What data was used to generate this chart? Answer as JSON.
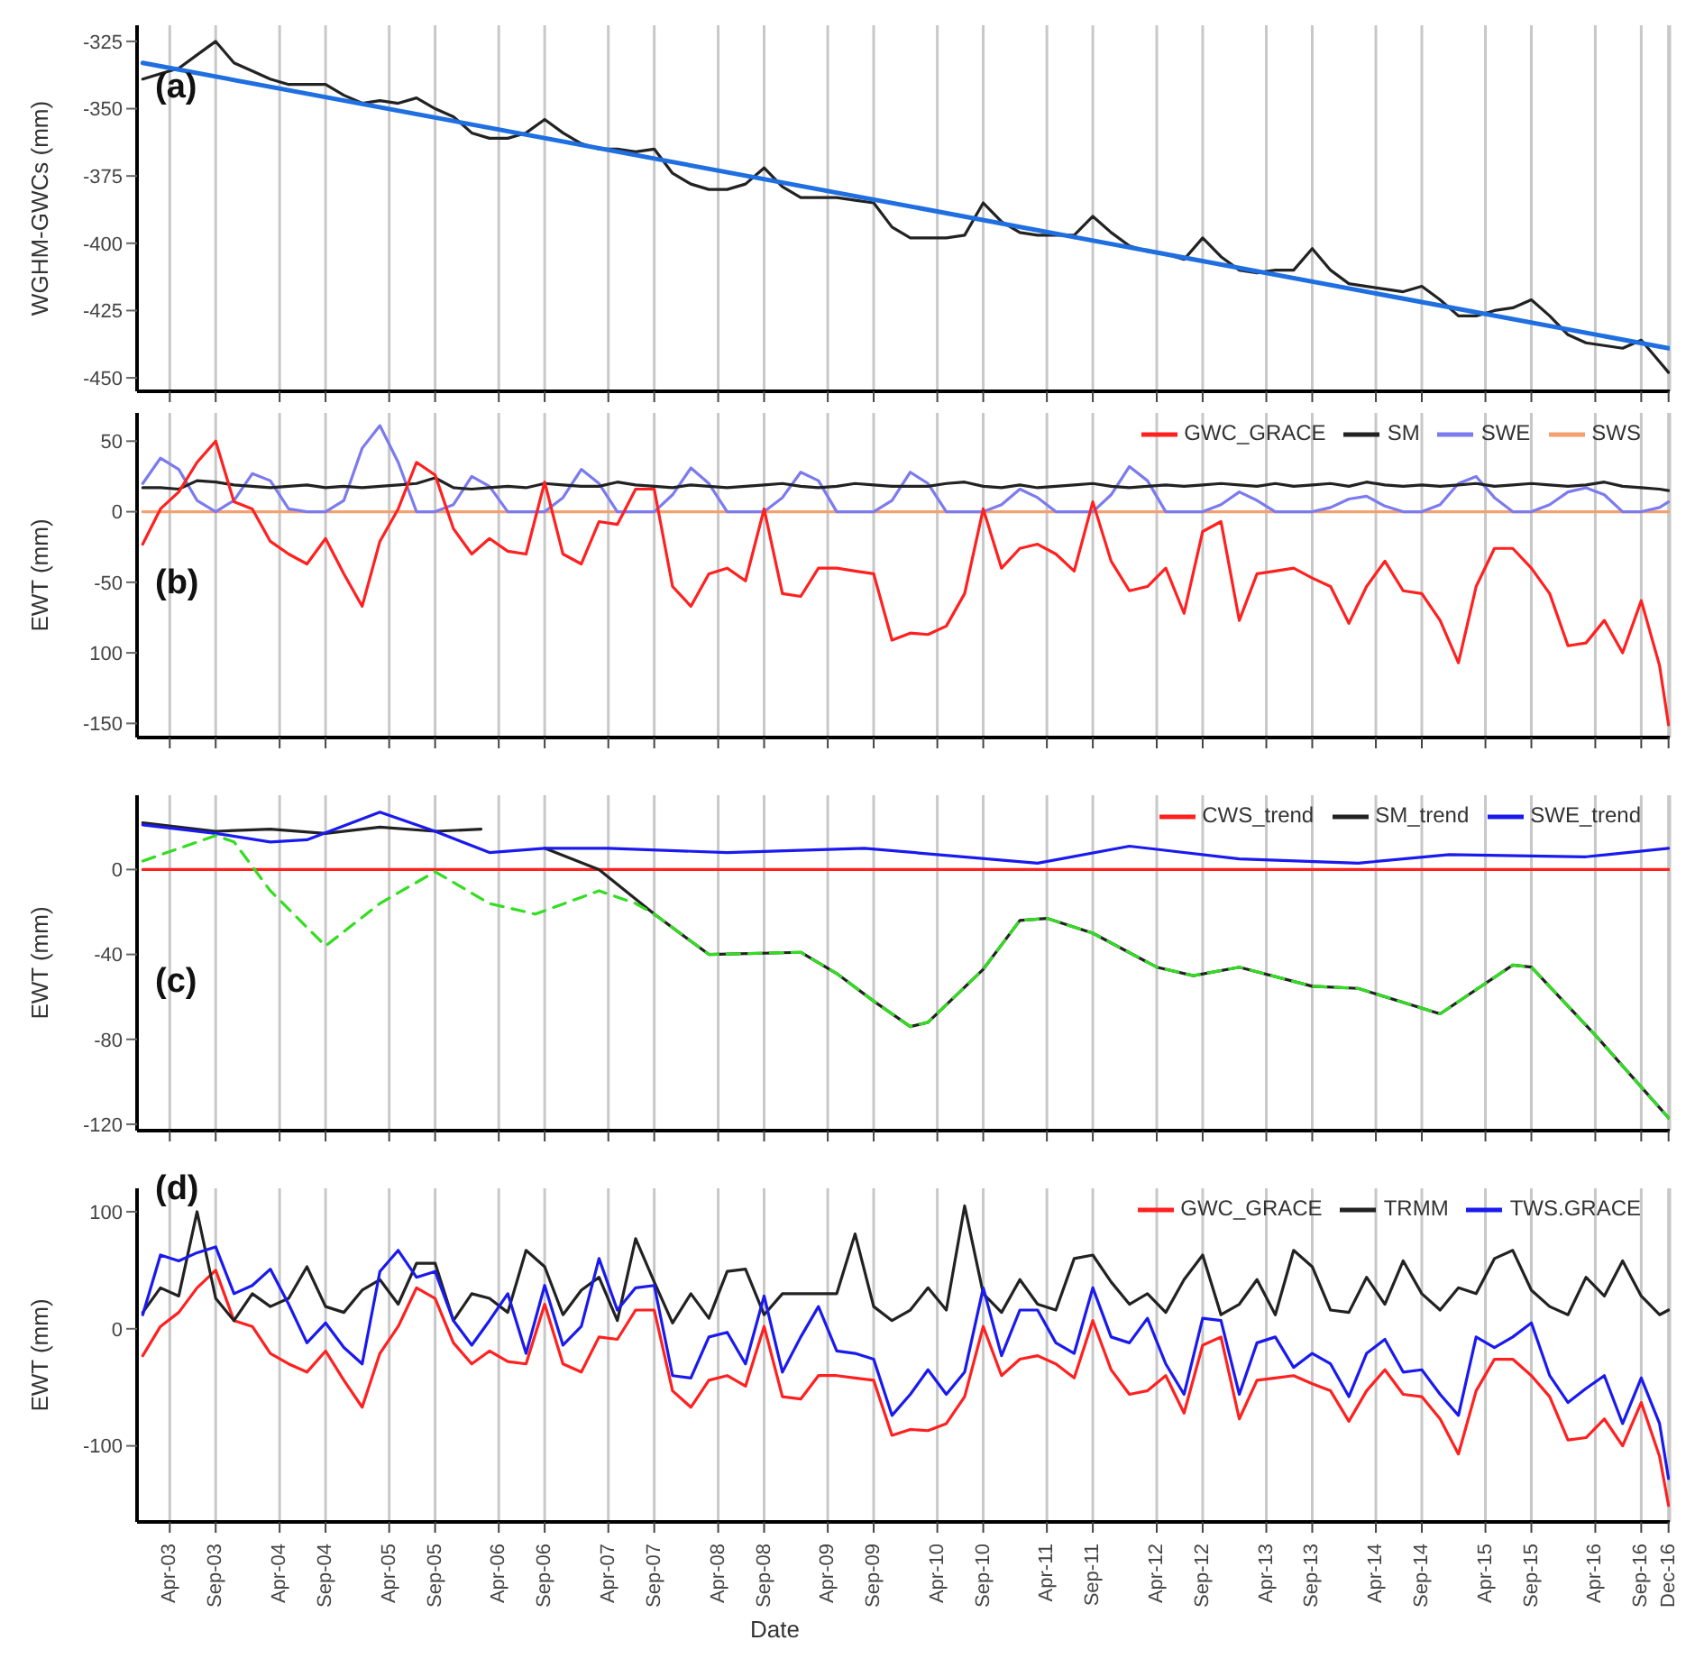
{
  "chart_data": [
    {
      "type": "line",
      "ylabel": "WGHM-GWCs (mm)",
      "annotations": [
        "(a)"
      ],
      "grid": "x",
      "tick_labels": "y",
      "marker": "none",
      "xlim": [
        "2002-12-13",
        "2016-12-05"
      ],
      "xticks": [
        {
          "value": "2003-04",
          "label": null
        },
        {
          "value": "2003-09",
          "label": null
        },
        {
          "value": "2004-04",
          "label": null
        },
        {
          "value": "2004-09",
          "label": null
        },
        {
          "value": "2005-04",
          "label": null
        },
        {
          "value": "2005-09",
          "label": null
        },
        {
          "value": "2006-04",
          "label": null
        },
        {
          "value": "2006-09",
          "label": null
        },
        {
          "value": "2007-04",
          "label": null
        },
        {
          "value": "2007-09",
          "label": null
        },
        {
          "value": "2008-04",
          "label": null
        },
        {
          "value": "2008-09",
          "label": null
        },
        {
          "value": "2009-04",
          "label": null
        },
        {
          "value": "2009-09",
          "label": null
        },
        {
          "value": "2010-04",
          "label": null
        },
        {
          "value": "2010-09",
          "label": null
        },
        {
          "value": "2011-04",
          "label": null
        },
        {
          "value": "2011-09",
          "label": null
        },
        {
          "value": "2012-04",
          "label": null
        },
        {
          "value": "2012-09",
          "label": null
        },
        {
          "value": "2013-04",
          "label": null
        },
        {
          "value": "2013-09",
          "label": null
        },
        {
          "value": "2014-04",
          "label": null
        },
        {
          "value": "2014-09",
          "label": null
        },
        {
          "value": "2015-04",
          "label": null
        },
        {
          "value": "2015-09",
          "label": null
        },
        {
          "value": "2016-04",
          "label": null
        },
        {
          "value": "2016-09",
          "label": null
        },
        {
          "value": "2016-12",
          "label": null
        }
      ],
      "ylim": [
        -455,
        -319
      ],
      "yticks": [
        -325,
        -350,
        -375,
        -400,
        -425,
        -450
      ],
      "x": [
        "2003-01",
        "2003-03",
        "2003-05",
        "2003-07",
        "2003-09",
        "2003-11",
        "2004-01",
        "2004-03",
        "2004-05",
        "2004-07",
        "2004-09",
        "2004-11",
        "2005-01",
        "2005-03",
        "2005-05",
        "2005-07",
        "2005-09",
        "2005-11",
        "2006-01",
        "2006-03",
        "2006-05",
        "2006-07",
        "2006-09",
        "2006-11",
        "2007-01",
        "2007-03",
        "2007-05",
        "2007-07",
        "2007-09",
        "2007-11",
        "2008-01",
        "2008-03",
        "2008-05",
        "2008-07",
        "2008-09",
        "2008-11",
        "2009-01",
        "2009-03",
        "2009-05",
        "2009-07",
        "2009-09",
        "2009-11",
        "2010-01",
        "2010-03",
        "2010-05",
        "2010-07",
        "2010-09",
        "2010-11",
        "2011-01",
        "2011-03",
        "2011-05",
        "2011-07",
        "2011-09",
        "2011-11",
        "2012-01",
        "2012-03",
        "2012-05",
        "2012-07",
        "2012-09",
        "2012-11",
        "2013-01",
        "2013-03",
        "2013-05",
        "2013-07",
        "2013-09",
        "2013-11",
        "2014-01",
        "2014-03",
        "2014-05",
        "2014-07",
        "2014-09",
        "2014-11",
        "2015-01",
        "2015-03",
        "2015-05",
        "2015-07",
        "2015-09",
        "2015-11",
        "2016-01",
        "2016-03",
        "2016-05",
        "2016-07",
        "2016-09",
        "2016-11",
        "2016-12"
      ],
      "series": [
        {
          "color": "#222222",
          "values": [
            -339,
            -337,
            -335,
            -330,
            -325,
            -333,
            -336,
            -339,
            -341,
            -341,
            -341,
            -345,
            -348,
            -347,
            -348,
            -346,
            -350,
            -353,
            -359,
            -361,
            -361,
            -359,
            -354,
            -359,
            -363,
            -365,
            -365,
            -366,
            -365,
            -374,
            -378,
            -380,
            -380,
            -378,
            -372,
            -379,
            -383,
            -383,
            -383,
            -384,
            -385,
            -394,
            -398,
            -398,
            -398,
            -397,
            -385,
            -392,
            -396,
            -397,
            -397,
            -397,
            -390,
            -396,
            -401,
            -403,
            -404,
            -406,
            -398,
            -405,
            -410,
            -411,
            -410,
            -410,
            -402,
            -410,
            -415,
            -416,
            -417,
            -418,
            -416,
            -421,
            -427,
            -427,
            -425,
            -424,
            -421,
            -427,
            -434,
            -437,
            -438,
            -439,
            -436,
            -444,
            -448
          ]
        },
        {
          "color": "#1f6fe0",
          "x": [
            "2003-01",
            "2016-12"
          ],
          "values": [
            -333,
            -439
          ]
        }
      ]
    },
    {
      "type": "line",
      "ylabel": "EWT (mm)",
      "annotations": [
        "(b)"
      ],
      "grid": "x",
      "tick_labels": "y",
      "marker": "none",
      "legend": "top right",
      "xlim": [
        "2002-12-13",
        "2016-12-05"
      ],
      "xticks": [
        {
          "value": "2003-04",
          "label": null
        },
        {
          "value": "2003-09",
          "label": null
        },
        {
          "value": "2004-04",
          "label": null
        },
        {
          "value": "2004-09",
          "label": null
        },
        {
          "value": "2005-04",
          "label": null
        },
        {
          "value": "2005-09",
          "label": null
        },
        {
          "value": "2006-04",
          "label": null
        },
        {
          "value": "2006-09",
          "label": null
        },
        {
          "value": "2007-04",
          "label": null
        },
        {
          "value": "2007-09",
          "label": null
        },
        {
          "value": "2008-04",
          "label": null
        },
        {
          "value": "2008-09",
          "label": null
        },
        {
          "value": "2009-04",
          "label": null
        },
        {
          "value": "2009-09",
          "label": null
        },
        {
          "value": "2010-04",
          "label": null
        },
        {
          "value": "2010-09",
          "label": null
        },
        {
          "value": "2011-04",
          "label": null
        },
        {
          "value": "2011-09",
          "label": null
        },
        {
          "value": "2012-04",
          "label": null
        },
        {
          "value": "2012-09",
          "label": null
        },
        {
          "value": "2013-04",
          "label": null
        },
        {
          "value": "2013-09",
          "label": null
        },
        {
          "value": "2014-04",
          "label": null
        },
        {
          "value": "2014-09",
          "label": null
        },
        {
          "value": "2015-04",
          "label": null
        },
        {
          "value": "2015-09",
          "label": null
        },
        {
          "value": "2016-04",
          "label": null
        },
        {
          "value": "2016-09",
          "label": null
        },
        {
          "value": "2016-12",
          "label": null
        }
      ],
      "ylim": [
        -160,
        70
      ],
      "yticks": [
        50,
        0,
        {
          "value": -50,
          "label": "-50"
        },
        {
          "value": -100,
          "label": "100"
        },
        -150
      ],
      "x": [
        "2003-01",
        "2003-03",
        "2003-05",
        "2003-07",
        "2003-09",
        "2003-11",
        "2004-01",
        "2004-03",
        "2004-05",
        "2004-07",
        "2004-09",
        "2004-11",
        "2005-01",
        "2005-03",
        "2005-05",
        "2005-07",
        "2005-09",
        "2005-11",
        "2006-01",
        "2006-03",
        "2006-05",
        "2006-07",
        "2006-09",
        "2006-11",
        "2007-01",
        "2007-03",
        "2007-05",
        "2007-07",
        "2007-09",
        "2007-11",
        "2008-01",
        "2008-03",
        "2008-05",
        "2008-07",
        "2008-09",
        "2008-11",
        "2009-01",
        "2009-03",
        "2009-05",
        "2009-07",
        "2009-09",
        "2009-11",
        "2010-01",
        "2010-03",
        "2010-05",
        "2010-07",
        "2010-09",
        "2010-11",
        "2011-01",
        "2011-03",
        "2011-05",
        "2011-07",
        "2011-09",
        "2011-11",
        "2012-01",
        "2012-03",
        "2012-05",
        "2012-07",
        "2012-09",
        "2012-11",
        "2013-01",
        "2013-03",
        "2013-05",
        "2013-07",
        "2013-09",
        "2013-11",
        "2014-01",
        "2014-03",
        "2014-05",
        "2014-07",
        "2014-09",
        "2014-11",
        "2015-01",
        "2015-03",
        "2015-05",
        "2015-07",
        "2015-09",
        "2015-11",
        "2016-01",
        "2016-03",
        "2016-05",
        "2016-07",
        "2016-09",
        "2016-11",
        "2016-12"
      ],
      "series": [
        {
          "name": "SWS",
          "color": "#f4a070",
          "x": [
            "2003-01",
            "2016-12"
          ],
          "values": [
            0,
            0
          ]
        },
        {
          "name": "SWE",
          "color": "#7b7bef",
          "values": [
            20,
            38,
            30,
            8,
            0,
            8,
            27,
            22,
            2,
            0,
            0,
            8,
            45,
            61,
            35,
            0,
            0,
            5,
            25,
            18,
            0,
            0,
            0,
            10,
            30,
            20,
            0,
            0,
            0,
            12,
            31,
            20,
            0,
            0,
            0,
            10,
            28,
            22,
            0,
            0,
            0,
            8,
            28,
            20,
            0,
            0,
            0,
            5,
            16,
            10,
            0,
            0,
            0,
            12,
            32,
            22,
            0,
            0,
            0,
            5,
            14,
            8,
            0,
            0,
            0,
            3,
            9,
            11,
            4,
            0,
            0,
            5,
            20,
            25,
            10,
            0,
            0,
            5,
            14,
            17,
            12,
            0,
            0,
            3,
            7
          ]
        },
        {
          "name": "SM",
          "color": "#222222",
          "values": [
            17,
            17,
            16,
            22,
            21,
            19,
            18,
            17,
            18,
            19,
            17,
            18,
            17,
            18,
            19,
            20,
            24,
            17,
            16,
            17,
            18,
            17,
            20,
            19,
            18,
            18,
            21,
            19,
            18,
            17,
            19,
            18,
            17,
            18,
            19,
            20,
            18,
            17,
            18,
            20,
            19,
            18,
            18,
            18,
            20,
            21,
            18,
            17,
            19,
            17,
            18,
            19,
            20,
            18,
            17,
            18,
            19,
            18,
            19,
            20,
            19,
            18,
            20,
            18,
            19,
            20,
            18,
            21,
            19,
            18,
            19,
            18,
            19,
            20,
            18,
            19,
            20,
            19,
            18,
            19,
            21,
            18,
            17,
            16,
            15
          ]
        },
        {
          "name": "GWC_GRACE",
          "color": "#ff2020",
          "values": [
            -23,
            2,
            14,
            35,
            50,
            7,
            2,
            -21,
            -30,
            -37,
            -19,
            -44,
            -67,
            -21,
            2,
            35,
            26,
            -12,
            -30,
            -19,
            -28,
            -30,
            21,
            -30,
            -37,
            -7,
            -9,
            16,
            16,
            -53,
            -67,
            -44,
            -40,
            -49,
            2,
            -58,
            -60,
            -40,
            -40,
            -42,
            -44,
            -91,
            -86,
            -87,
            -81,
            -58,
            2,
            -40,
            -26,
            -23,
            -30,
            -42,
            7,
            -35,
            -56,
            -53,
            -40,
            -72,
            -14,
            -7,
            -77,
            -44,
            -42,
            -40,
            -47,
            -53,
            -79,
            -53,
            -35,
            -56,
            -58,
            -77,
            -107,
            -53,
            -26,
            -26,
            -40,
            -58,
            -95,
            -93,
            -77,
            -100,
            -63,
            -109,
            -151
          ]
        }
      ]
    },
    {
      "type": "line",
      "ylabel": "EWT (mm)",
      "annotations": [
        "(c)"
      ],
      "grid": "x",
      "tick_labels": "y",
      "marker": "none",
      "legend": "top right",
      "xlim": [
        "2002-12-13",
        "2016-12-05"
      ],
      "xticks": [
        {
          "value": "2003-04",
          "label": null
        },
        {
          "value": "2003-09",
          "label": null
        },
        {
          "value": "2004-04",
          "label": null
        },
        {
          "value": "2004-09",
          "label": null
        },
        {
          "value": "2005-04",
          "label": null
        },
        {
          "value": "2005-09",
          "label": null
        },
        {
          "value": "2006-04",
          "label": null
        },
        {
          "value": "2006-09",
          "label": null
        },
        {
          "value": "2007-04",
          "label": null
        },
        {
          "value": "2007-09",
          "label": null
        },
        {
          "value": "2008-04",
          "label": null
        },
        {
          "value": "2008-09",
          "label": null
        },
        {
          "value": "2009-04",
          "label": null
        },
        {
          "value": "2009-09",
          "label": null
        },
        {
          "value": "2010-04",
          "label": null
        },
        {
          "value": "2010-09",
          "label": null
        },
        {
          "value": "2011-04",
          "label": null
        },
        {
          "value": "2011-09",
          "label": null
        },
        {
          "value": "2012-04",
          "label": null
        },
        {
          "value": "2012-09",
          "label": null
        },
        {
          "value": "2013-04",
          "label": null
        },
        {
          "value": "2013-09",
          "label": null
        },
        {
          "value": "2014-04",
          "label": null
        },
        {
          "value": "2014-09",
          "label": null
        },
        {
          "value": "2015-04",
          "label": null
        },
        {
          "value": "2015-09",
          "label": null
        },
        {
          "value": "2016-04",
          "label": null
        },
        {
          "value": "2016-09",
          "label": null
        },
        {
          "value": "2016-12",
          "label": null
        }
      ],
      "ylim": [
        -123,
        35
      ],
      "yticks": [
        0,
        -40,
        -80,
        -120
      ],
      "series": [
        {
          "name": "CWS_trend",
          "color": "#ff2020",
          "x": [
            "2003-01",
            "2016-12"
          ],
          "values": [
            0,
            0
          ]
        },
        {
          "name": "SM_trend",
          "color": "#222222",
          "x": [
            "2003-01",
            "2003-09",
            "2004-03",
            "2004-09",
            "2005-03",
            "2005-09",
            "2006-02",
            "2006-05",
            "2006-09",
            "2007-03",
            "2007-09",
            "2008-03",
            "2009-01",
            "2009-05",
            "2009-09",
            "2010-01",
            "2010-03",
            "2010-09",
            "2011-01",
            "2011-04",
            "2011-09",
            "2012-04",
            "2012-08",
            "2013-01",
            "2013-09",
            "2014-02",
            "2014-11",
            "2015-07",
            "2015-09",
            "2016-04",
            "2016-12"
          ],
          "values": [
            22,
            18,
            19,
            17,
            20,
            18,
            19,
            null,
            10,
            0,
            -21,
            -40,
            -39,
            -49,
            -62,
            -74,
            -72,
            -47,
            -24,
            -23,
            -30,
            -46,
            -50,
            -46,
            -55,
            -56,
            -68,
            -45,
            -46,
            -78,
            -117
          ]
        },
        {
          "name": "SWE_trend",
          "color": "#1a1aee",
          "x": [
            "2003-01",
            "2003-09",
            "2004-03",
            "2004-07",
            "2005-03",
            "2005-09",
            "2006-03",
            "2006-09",
            "2007-04",
            "2008-05",
            "2009-08",
            "2011-03",
            "2012-01",
            "2013-01",
            "2014-02",
            "2014-12",
            "2016-03",
            "2016-12"
          ],
          "values": [
            21,
            17,
            13,
            14,
            27,
            18,
            8,
            10,
            10,
            8,
            10,
            3,
            11,
            5,
            3,
            7,
            6,
            10
          ]
        },
        {
          "color": "#33dd22",
          "line_style": "dashed",
          "x": [
            "2003-01",
            "2003-09",
            "2003-11",
            "2004-03",
            "2004-09",
            "2005-03",
            "2005-09",
            "2006-03",
            "2006-08",
            "2007-03",
            "2007-07",
            "2007-09",
            "2008-03",
            "2009-01",
            "2009-05",
            "2009-09",
            "2010-01",
            "2010-03",
            "2010-09",
            "2011-01",
            "2011-04",
            "2011-09",
            "2012-04",
            "2012-08",
            "2013-01",
            "2013-09",
            "2014-02",
            "2014-11",
            "2015-07",
            "2015-09",
            "2016-04",
            "2016-12"
          ],
          "values": [
            4,
            16,
            13,
            -10,
            -36,
            -16,
            -1,
            -16,
            -21,
            -10,
            -16,
            -21,
            -40,
            -39,
            -49,
            -62,
            -74,
            -72,
            -47,
            -24,
            -23,
            -30,
            -46,
            -50,
            -46,
            -55,
            -56,
            -68,
            -45,
            -46,
            -78,
            -117
          ]
        }
      ]
    },
    {
      "type": "line",
      "ylabel": "EWT (mm)",
      "xlabel": "Date",
      "annotations": [
        "(d)"
      ],
      "grid": "x",
      "marker": "none",
      "legend": "top right",
      "xlim": [
        "2002-12-13",
        "2016-12-05"
      ],
      "xticks": [
        {
          "value": "2003-04",
          "label": "Apr-03"
        },
        {
          "value": "2003-09",
          "label": "Sep-03"
        },
        {
          "value": "2004-04",
          "label": "Apr-04"
        },
        {
          "value": "2004-09",
          "label": "Sep-04"
        },
        {
          "value": "2005-04",
          "label": "Apr-05"
        },
        {
          "value": "2005-09",
          "label": "Sep-05"
        },
        {
          "value": "2006-04",
          "label": "Apr-06"
        },
        {
          "value": "2006-09",
          "label": "Sep-06"
        },
        {
          "value": "2007-04",
          "label": "Apr-07"
        },
        {
          "value": "2007-09",
          "label": "Sep-07"
        },
        {
          "value": "2008-04",
          "label": "Apr-08"
        },
        {
          "value": "2008-09",
          "label": "Sep-08"
        },
        {
          "value": "2009-04",
          "label": "Apr-09"
        },
        {
          "value": "2009-09",
          "label": "Sep-09"
        },
        {
          "value": "2010-04",
          "label": "Apr-10"
        },
        {
          "value": "2010-09",
          "label": "Sep-10"
        },
        {
          "value": "2011-04",
          "label": "Apr-11"
        },
        {
          "value": "2011-09",
          "label": "Sep-11"
        },
        {
          "value": "2012-04",
          "label": "Apr-12"
        },
        {
          "value": "2012-09",
          "label": "Sep-12"
        },
        {
          "value": "2013-04",
          "label": "Apr-13"
        },
        {
          "value": "2013-09",
          "label": "Sep-13"
        },
        {
          "value": "2014-04",
          "label": "Apr-14"
        },
        {
          "value": "2014-09",
          "label": "Sep-14"
        },
        {
          "value": "2015-04",
          "label": "Apr-15"
        },
        {
          "value": "2015-09",
          "label": "Sep-15"
        },
        {
          "value": "2016-04",
          "label": "Apr-16"
        },
        {
          "value": "2016-09",
          "label": "Sep-16"
        },
        {
          "value": "2016-12",
          "label": "Dec-16"
        }
      ],
      "ylim": [
        -165,
        120
      ],
      "yticks": [
        100,
        0,
        -100
      ],
      "x": [
        "2003-01",
        "2003-03",
        "2003-05",
        "2003-07",
        "2003-09",
        "2003-11",
        "2004-01",
        "2004-03",
        "2004-05",
        "2004-07",
        "2004-09",
        "2004-11",
        "2005-01",
        "2005-03",
        "2005-05",
        "2005-07",
        "2005-09",
        "2005-11",
        "2006-01",
        "2006-03",
        "2006-05",
        "2006-07",
        "2006-09",
        "2006-11",
        "2007-01",
        "2007-03",
        "2007-05",
        "2007-07",
        "2007-09",
        "2007-11",
        "2008-01",
        "2008-03",
        "2008-05",
        "2008-07",
        "2008-09",
        "2008-11",
        "2009-01",
        "2009-03",
        "2009-05",
        "2009-07",
        "2009-09",
        "2009-11",
        "2010-01",
        "2010-03",
        "2010-05",
        "2010-07",
        "2010-09",
        "2010-11",
        "2011-01",
        "2011-03",
        "2011-05",
        "2011-07",
        "2011-09",
        "2011-11",
        "2012-01",
        "2012-03",
        "2012-05",
        "2012-07",
        "2012-09",
        "2012-11",
        "2013-01",
        "2013-03",
        "2013-05",
        "2013-07",
        "2013-09",
        "2013-11",
        "2014-01",
        "2014-03",
        "2014-05",
        "2014-07",
        "2014-09",
        "2014-11",
        "2015-01",
        "2015-03",
        "2015-05",
        "2015-07",
        "2015-09",
        "2015-11",
        "2016-01",
        "2016-03",
        "2016-05",
        "2016-07",
        "2016-09",
        "2016-11",
        "2016-12"
      ],
      "series": [
        {
          "name": "GWC_GRACE",
          "color": "#ff2020",
          "values": [
            -23,
            2,
            14,
            35,
            50,
            7,
            2,
            -21,
            -30,
            -37,
            -19,
            -44,
            -67,
            -21,
            2,
            35,
            26,
            -12,
            -30,
            -19,
            -28,
            -30,
            21,
            -30,
            -37,
            -7,
            -9,
            16,
            16,
            -53,
            -67,
            -44,
            -40,
            -49,
            2,
            -58,
            -60,
            -40,
            -40,
            -42,
            -44,
            -91,
            -86,
            -87,
            -81,
            -58,
            2,
            -40,
            -26,
            -23,
            -30,
            -42,
            7,
            -35,
            -56,
            -53,
            -40,
            -72,
            -14,
            -7,
            -77,
            -44,
            -42,
            -40,
            -47,
            -53,
            -79,
            -53,
            -35,
            -56,
            -58,
            -77,
            -107,
            -53,
            -26,
            -26,
            -40,
            -58,
            -95,
            -93,
            -77,
            -100,
            -63,
            -109,
            -151
          ]
        },
        {
          "name": "TRMM",
          "color": "#222222",
          "values": [
            14,
            35,
            28,
            100,
            26,
            7,
            30,
            19,
            26,
            53,
            19,
            14,
            33,
            42,
            21,
            56,
            56,
            7,
            30,
            26,
            14,
            67,
            53,
            12,
            33,
            44,
            7,
            77,
            40,
            5,
            30,
            9,
            49,
            51,
            12,
            30,
            30,
            30,
            30,
            81,
            19,
            7,
            16,
            35,
            16,
            105,
            30,
            14,
            42,
            21,
            16,
            60,
            63,
            40,
            21,
            30,
            14,
            42,
            63,
            12,
            21,
            42,
            12,
            67,
            53,
            16,
            14,
            44,
            21,
            58,
            30,
            16,
            35,
            30,
            60,
            67,
            33,
            19,
            12,
            44,
            28,
            58,
            28,
            12,
            16
          ]
        },
        {
          "name": "TWS.GRACE",
          "color": "#1a1aee",
          "values": [
            12,
            63,
            58,
            65,
            70,
            30,
            37,
            51,
            21,
            -12,
            5,
            -16,
            -30,
            49,
            67,
            44,
            49,
            7,
            -14,
            7,
            30,
            -21,
            37,
            -14,
            2,
            60,
            16,
            35,
            37,
            -40,
            -42,
            -7,
            -3,
            -30,
            28,
            -37,
            -7,
            19,
            -19,
            -21,
            -26,
            -74,
            -56,
            -35,
            -56,
            -37,
            35,
            -23,
            16,
            16,
            -12,
            -21,
            35,
            -7,
            -12,
            9,
            -30,
            -56,
            9,
            7,
            -56,
            -12,
            -7,
            -33,
            -21,
            -30,
            -58,
            -21,
            -9,
            -37,
            -35,
            -56,
            -74,
            -7,
            -16,
            -7,
            5,
            -40,
            -63,
            -51,
            -40,
            -81,
            -42,
            -81,
            -128
          ]
        }
      ]
    }
  ]
}
